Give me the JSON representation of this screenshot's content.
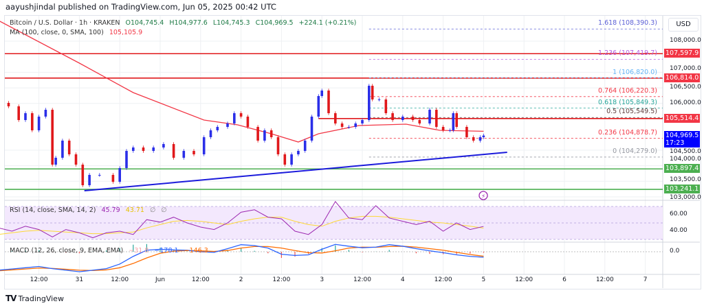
{
  "header": {
    "published": "aayushjindal published on TradingView.com, Jun 05, 2025 00:42 UTC"
  },
  "legend": {
    "symbol": "Bitcoin / U.S. Dollar · 1h · KRAKEN",
    "open": "O104,745.4",
    "high": "H104,977.6",
    "low": "L104,745.3",
    "close": "C104,969.5",
    "change": "+224.1 (+0.21%)",
    "ma_label": "MA (100, close, 0, SMA, 100)",
    "ma_value": "105,105.9",
    "rsi_label": "RSI (14, close, SMA, 14, 2)",
    "rsi_value": "45.79",
    "rsi_sma_value": "43.71",
    "rsi_extra1": "∅",
    "rsi_extra2": "∅",
    "macd_label": "MACD (12, 26, close, 9, EMA, EMA)",
    "macd_hist": "−31.8",
    "macd_value": "−178.1",
    "macd_signal": "−146.3"
  },
  "price_axis": {
    "currency": "USD",
    "ticks": [
      "108,000.0",
      "107,000.0",
      "106,500.0",
      "106,000.0",
      "104,500.0",
      "104,000.0",
      "103,500.0",
      "103,000.0"
    ],
    "tick_values": [
      108000,
      107000,
      106500,
      106000,
      104500,
      104000,
      103500,
      103000
    ],
    "rsi_ticks": [
      "60.00",
      "40.00"
    ],
    "macd_ticks": [
      "0.0"
    ]
  },
  "badges": [
    {
      "label": "107,597.9",
      "price": 107597.9,
      "color": "#f23645"
    },
    {
      "label": "106,814.0",
      "price": 106814.0,
      "color": "#f23645"
    },
    {
      "label": "105,514.4",
      "price": 105514.4,
      "color": "#f23645"
    },
    {
      "label": "104,969.5",
      "sub": "17:23",
      "price": 104969.5,
      "color": "#0000ff"
    },
    {
      "label": "103,897.4",
      "price": 103897.4,
      "color": "#4caf50"
    },
    {
      "label": "103,241.1",
      "price": 103241.1,
      "color": "#4caf50"
    }
  ],
  "fib_levels": [
    {
      "label": "1.618 (108,390.3)",
      "price": 108390.3,
      "color": "#5b5fd6"
    },
    {
      "label": "1.236 (107,419.7)",
      "price": 107419.7,
      "color": "#b35ce0"
    },
    {
      "label": "1 (106,820.0)",
      "price": 106820.0,
      "color": "#64b5f6"
    },
    {
      "label": "0.764 (106,220.3)",
      "price": 106220.3,
      "color": "#f23645"
    },
    {
      "label": "0.618 (105,849.3)",
      "price": 105849.3,
      "color": "#26a69a"
    },
    {
      "label": "0.5 (105,549.5)",
      "price": 105549.5,
      "color": "#5d3a3a"
    },
    {
      "label": "0.236 (104,878.7)",
      "price": 104878.7,
      "color": "#f23645"
    },
    {
      "label": "0 (104,279.0)",
      "price": 104279.0,
      "color": "#9598a1"
    }
  ],
  "time_axis": [
    {
      "label": "12:00",
      "t": "2025-05-30T12:00"
    },
    {
      "label": "31",
      "t": "2025-05-31T00:00"
    },
    {
      "label": "12:00",
      "t": "2025-05-31T12:00"
    },
    {
      "label": "Jun",
      "t": "2025-06-01T00:00"
    },
    {
      "label": "12:00",
      "t": "2025-06-01T12:00"
    },
    {
      "label": "2",
      "t": "2025-06-02T00:00"
    },
    {
      "label": "12:00",
      "t": "2025-06-02T12:00"
    },
    {
      "label": "3",
      "t": "2025-06-03T00:00"
    },
    {
      "label": "12:00",
      "t": "2025-06-03T12:00"
    },
    {
      "label": "4",
      "t": "2025-06-04T00:00"
    },
    {
      "label": "12:00",
      "t": "2025-06-04T12:00"
    },
    {
      "label": "5",
      "t": "2025-06-05T00:00"
    },
    {
      "label": "12:00",
      "t": "2025-06-05T12:00"
    },
    {
      "label": "6",
      "t": "2025-06-06T00:00"
    },
    {
      "label": "12:00",
      "t": "2025-06-06T12:00"
    },
    {
      "label": "7",
      "t": "2025-06-07T00:00"
    }
  ],
  "colors": {
    "up": "#2a2ee8",
    "down": "#e0181b",
    "ma": "#f23645",
    "trendline": "#1a1adb",
    "rsi": "#9c27b0",
    "rsi_sma": "#fdd835",
    "rsi_band": "#f3e8fd",
    "macd": "#2962ff",
    "signal": "#ff6d00"
  },
  "chart_data": {
    "type": "candlestick",
    "price_range": [
      103000,
      108400
    ],
    "closes": [
      [
        "2025-05-30T00:00",
        106018
      ],
      [
        "2025-05-30T03:00",
        105907
      ],
      [
        "2025-05-30T06:00",
        105467
      ],
      [
        "2025-05-30T08:00",
        105687
      ],
      [
        "2025-05-30T10:00",
        105137
      ],
      [
        "2025-05-30T12:00",
        105577
      ],
      [
        "2025-05-30T14:00",
        105797
      ],
      [
        "2025-05-30T16:00",
        104035
      ],
      [
        "2025-05-30T17:00",
        104256
      ],
      [
        "2025-05-30T19:00",
        104806
      ],
      [
        "2025-05-30T21:00",
        104366
      ],
      [
        "2025-05-30T23:00",
        104035
      ],
      [
        "2025-05-31T01:00",
        103374
      ],
      [
        "2025-05-31T03:00",
        103705
      ],
      [
        "2025-05-31T06:00",
        103705
      ],
      [
        "2025-05-31T10:00",
        103485
      ],
      [
        "2025-05-31T12:00",
        103925
      ],
      [
        "2025-05-31T14:00",
        104476
      ],
      [
        "2025-05-31T16:00",
        104586
      ],
      [
        "2025-05-31T19:00",
        104476
      ],
      [
        "2025-05-31T22:00",
        104586
      ],
      [
        "2025-06-01T01:00",
        104696
      ],
      [
        "2025-06-01T04:00",
        104256
      ],
      [
        "2025-06-01T07:00",
        104476
      ],
      [
        "2025-06-01T10:00",
        104366
      ],
      [
        "2025-06-01T13:00",
        104916
      ],
      [
        "2025-06-01T15:00",
        105137
      ],
      [
        "2025-06-01T17:00",
        105247
      ],
      [
        "2025-06-01T20:00",
        105357
      ],
      [
        "2025-06-01T22:00",
        105687
      ],
      [
        "2025-06-02T00:00",
        105577
      ],
      [
        "2025-06-02T02:00",
        105247
      ],
      [
        "2025-06-02T05:00",
        104806
      ],
      [
        "2025-06-02T07:00",
        105137
      ],
      [
        "2025-06-02T09:00",
        104916
      ],
      [
        "2025-06-02T11:00",
        104366
      ],
      [
        "2025-06-02T13:00",
        104035
      ],
      [
        "2025-06-02T15:00",
        104366
      ],
      [
        "2025-06-02T17:00",
        104476
      ],
      [
        "2025-06-02T19:00",
        104806
      ],
      [
        "2025-06-02T21:00",
        105577
      ],
      [
        "2025-06-02T23:00",
        106238
      ],
      [
        "2025-06-03T00:00",
        106414
      ],
      [
        "2025-06-03T02:00",
        105687
      ],
      [
        "2025-06-03T04:00",
        105357
      ],
      [
        "2025-06-03T06:00",
        105247
      ],
      [
        "2025-06-03T08:00",
        105247
      ],
      [
        "2025-06-03T10:00",
        105357
      ],
      [
        "2025-06-03T12:00",
        105467
      ],
      [
        "2025-06-03T14:00",
        106568
      ],
      [
        "2025-06-03T15:00",
        106128
      ],
      [
        "2025-06-03T17:00",
        106128
      ],
      [
        "2025-06-03T19:00",
        105687
      ],
      [
        "2025-06-03T21:00",
        105467
      ],
      [
        "2025-06-04T00:00",
        105577
      ],
      [
        "2025-06-04T03:00",
        105467
      ],
      [
        "2025-06-04T05:00",
        105357
      ],
      [
        "2025-06-04T08:00",
        105797
      ],
      [
        "2025-06-04T10:00",
        105247
      ],
      [
        "2025-06-04T12:00",
        105137
      ],
      [
        "2025-06-04T14:00",
        105137
      ],
      [
        "2025-06-04T15:00",
        105687
      ],
      [
        "2025-06-04T16:00",
        105247
      ],
      [
        "2025-06-04T19:00",
        104916
      ],
      [
        "2025-06-04T21:00",
        104806
      ],
      [
        "2025-06-04T23:00",
        104916
      ],
      [
        "2025-06-05T00:00",
        104969.5
      ]
    ],
    "ma100": [
      [
        "2025-05-30T00:00",
        108661
      ],
      [
        "2025-05-31T00:00",
        107295
      ],
      [
        "2025-05-31T16:00",
        106348
      ],
      [
        "2025-06-01T13:00",
        105467
      ],
      [
        "2025-06-01T23:00",
        105313
      ],
      [
        "2025-06-02T09:00",
        105026
      ],
      [
        "2025-06-02T17:00",
        104762
      ],
      [
        "2025-06-02T23:00",
        105026
      ],
      [
        "2025-06-03T11:00",
        105291
      ],
      [
        "2025-06-04T01:00",
        105335
      ],
      [
        "2025-06-04T11:00",
        105137
      ],
      [
        "2025-06-05T00:00",
        105105.9
      ]
    ],
    "trendline": [
      [
        "2025-05-31T01:30",
        103198
      ],
      [
        "2025-06-05T07:00",
        104432
      ]
    ],
    "horizontal_lines": [
      107597.9,
      106814.0,
      105514.4,
      103897.4,
      103241.1
    ],
    "indicator_times_start": "2025-05-30T00:00",
    "indicator_step_hours": 4,
    "rsi": [
      44,
      40,
      46,
      42,
      33,
      42,
      38,
      32,
      38,
      40,
      36,
      54,
      51,
      57,
      50,
      45,
      42,
      50,
      63,
      66,
      57,
      55,
      40,
      36,
      48,
      76,
      56,
      54,
      71,
      56,
      52,
      48,
      52,
      40,
      50,
      42,
      45.79
    ],
    "rsi_sma": [
      36,
      38,
      40,
      41,
      40,
      39,
      38,
      37,
      37,
      38,
      39,
      44,
      48,
      52,
      53,
      52,
      50,
      48,
      52,
      55,
      57,
      57,
      52,
      48,
      46,
      52,
      56,
      58,
      58,
      57,
      55,
      53,
      51,
      50,
      48,
      46,
      43.71
    ],
    "macd": [
      -600,
      -560,
      -520,
      -480,
      -550,
      -600,
      -650,
      -600,
      -550,
      -400,
      -150,
      50,
      80,
      60,
      50,
      0,
      -20,
      100,
      230,
      200,
      120,
      -80,
      -120,
      -100,
      80,
      240,
      180,
      130,
      150,
      230,
      180,
      100,
      30,
      -30,
      -100,
      -150,
      -178.1
    ],
    "signal": [
      -620,
      -590,
      -560,
      -530,
      -540,
      -570,
      -600,
      -610,
      -590,
      -520,
      -380,
      -200,
      -50,
      20,
      40,
      30,
      10,
      40,
      120,
      170,
      170,
      120,
      40,
      -30,
      -40,
      30,
      120,
      150,
      145,
      170,
      180,
      150,
      100,
      50,
      -20,
      -90,
      -146.3
    ]
  },
  "footer": {
    "brand": "TradingView"
  }
}
